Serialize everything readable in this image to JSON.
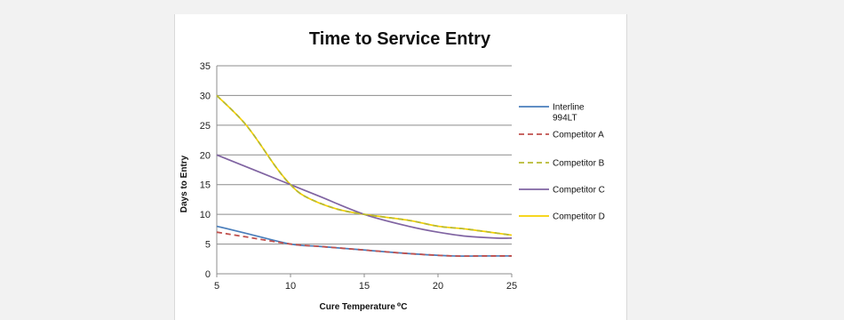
{
  "chart_data": {
    "type": "line",
    "title": "Time to Service Entry",
    "xlabel": "Cure Temperature",
    "xlabel_unit": "⁰C",
    "ylabel": "Days to Entry",
    "xlim": [
      5,
      25
    ],
    "ylim": [
      0,
      35
    ],
    "x_ticks": [
      5,
      10,
      15,
      20,
      25
    ],
    "y_ticks": [
      0,
      5,
      10,
      15,
      20,
      25,
      30,
      35
    ],
    "grid": "horizontal",
    "legend_position": "right",
    "series": [
      {
        "name": "Interline 994LT",
        "legend_lines": [
          "Interline",
          "994LT"
        ],
        "color": "#4a7ebb",
        "dash": "solid",
        "x": [
          5,
          7,
          10,
          12,
          15,
          18,
          21,
          23,
          25
        ],
        "y": [
          8,
          6.8,
          5,
          4.6,
          4,
          3.4,
          3,
          3,
          3
        ]
      },
      {
        "name": "Competitor A",
        "legend_lines": [
          "Competitor A"
        ],
        "color": "#c0504d",
        "dash": "dashed",
        "x": [
          5,
          7,
          10,
          12,
          15,
          18,
          21,
          23,
          25
        ],
        "y": [
          7,
          6.2,
          5,
          4.6,
          4,
          3.4,
          3,
          3,
          3
        ]
      },
      {
        "name": "Competitor B",
        "legend_lines": [
          "Competitor B"
        ],
        "color": "#b8ba32",
        "dash": "dashed",
        "x": [
          5,
          7,
          9,
          10,
          11,
          13,
          15,
          18,
          20,
          22,
          25
        ],
        "y": [
          30,
          25,
          18,
          15,
          13,
          11,
          10,
          9,
          8,
          7.5,
          6.5
        ]
      },
      {
        "name": "Competitor C",
        "legend_lines": [
          "Competitor C"
        ],
        "color": "#8064a2",
        "dash": "solid",
        "x": [
          5,
          8,
          10,
          12,
          15,
          18,
          20,
          22,
          24,
          25
        ],
        "y": [
          20,
          17,
          15,
          13,
          10,
          8,
          7,
          6.3,
          6,
          6
        ]
      },
      {
        "name": "Competitor D",
        "legend_lines": [
          "Competitor D"
        ],
        "color": "#f5d000",
        "dash": "solid",
        "x": [
          5,
          7,
          9,
          10,
          11,
          13,
          15,
          18,
          20,
          22,
          25
        ],
        "y": [
          30,
          25,
          18,
          15,
          13,
          11,
          10,
          9,
          8,
          7.5,
          6.5
        ]
      }
    ]
  }
}
